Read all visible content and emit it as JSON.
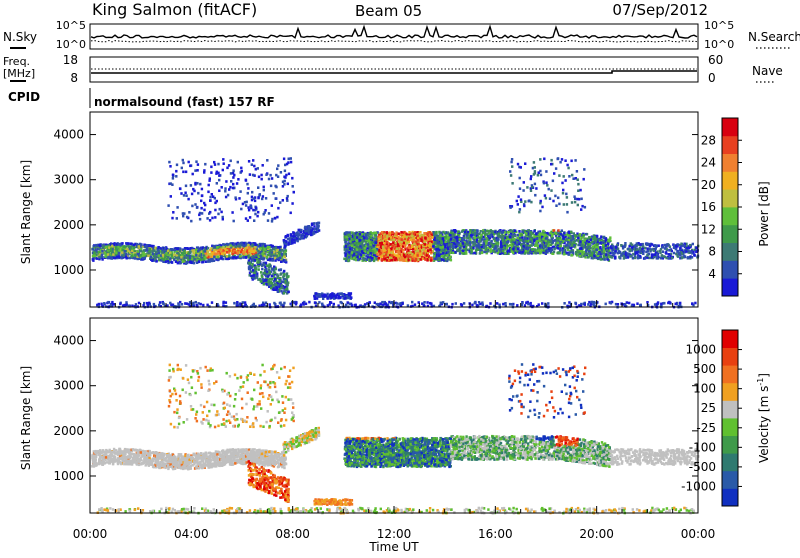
{
  "header": {
    "station": "King Salmon (fitACF)",
    "beam": "Beam 05",
    "date": "07/Sep/2012"
  },
  "top_panels": {
    "nsky_label": "N.Sky",
    "nsearch_label": "N.Search",
    "noise_ticks": [
      "10^5",
      "10^0"
    ],
    "freq_label_top": "Freq.",
    "freq_label_unit": "[MHz]",
    "freq_ticks": [
      "18",
      "8"
    ],
    "nave_label": "Nave",
    "nave_ticks": [
      "60",
      "0"
    ],
    "cpid_label": "CPID",
    "cpid_value": "normalsound (fast) 157 RF"
  },
  "chart_data": [
    {
      "type": "heatmap",
      "name": "power",
      "ylabel": "Slant Range [km]",
      "ylim": [
        180,
        4500
      ],
      "yticks": [
        "1000",
        "2000",
        "3000",
        "4000"
      ],
      "xlim": [
        "00:00",
        "24:00"
      ],
      "colorbar_label": "Power [dB]",
      "colorbar_ticks": [
        "4",
        "8",
        "12",
        "16",
        "20",
        "24",
        "28"
      ],
      "colorbar_colors": [
        "#1a1ad6",
        "#2f4fb0",
        "#3d7a74",
        "#3f9a4a",
        "#5fbf3a",
        "#bfbf40",
        "#f0b020",
        "#f08030",
        "#e84020",
        "#d80010"
      ],
      "grid": false
    },
    {
      "type": "heatmap",
      "name": "velocity",
      "ylabel": "Slant Range [km]",
      "ylim": [
        180,
        4500
      ],
      "yticks": [
        "1000",
        "2000",
        "3000",
        "4000"
      ],
      "xlim": [
        "00:00",
        "24:00"
      ],
      "xticks": [
        "00:00",
        "04:00",
        "08:00",
        "12:00",
        "16:00",
        "20:00",
        "00:00"
      ],
      "xlabel": "Time UT",
      "colorbar_label": "Velocity [m s",
      "colorbar_label_sup": "-1",
      "colorbar_label_end": "]",
      "colorbar_ticks": [
        "1000",
        "500",
        "100",
        "25",
        "-25",
        "-100",
        "-500",
        "-1000"
      ],
      "colorbar_colors": [
        "#1030c0",
        "#2a5aa8",
        "#2f7a70",
        "#3f9a4a",
        "#60c030",
        "#c0c0c0",
        "#f0a020",
        "#f07020",
        "#e84010",
        "#e00000"
      ],
      "grid": false
    }
  ]
}
